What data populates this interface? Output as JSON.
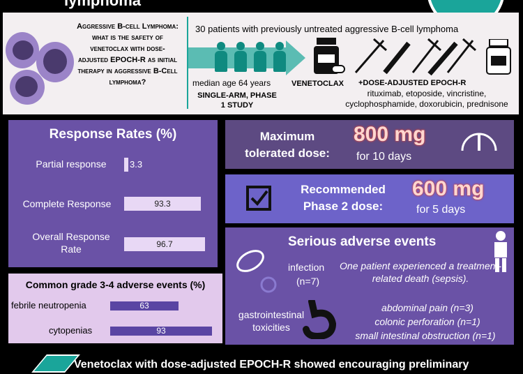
{
  "header": {
    "title_fragment": "lymphoma"
  },
  "intro": {
    "question": "Aggressive B-cell Lymphoma: what is the safety of venetoclax with dose-adjusted EPOCH-R as initial therapy in aggressive B-Cell lymphoma?",
    "study_population": "30 patients with previously untreated aggressive B-cell lymphoma",
    "median_age": "median age 64 years",
    "design": "SINGLE-ARM, PHASE 1 STUDY",
    "drug": "VENETOCLAX",
    "regimen": "+DOSE-ADJUSTED EPOCH-R",
    "regimen_drugs": "rituximab, etoposide, vincristine, cyclophosphamide, doxorubicin, prednisone"
  },
  "response": {
    "title": "Response Rates (%)",
    "items": [
      {
        "label": "Partial response",
        "value": "3.3"
      },
      {
        "label": "Complete Response",
        "value": "93.3"
      },
      {
        "label": "Overall Response Rate",
        "value": "96.7"
      }
    ]
  },
  "adverse": {
    "title": "Common grade 3-4 adverse events (%)",
    "items": [
      {
        "label": "febrile neutropenia",
        "value": "63"
      },
      {
        "label": "cytopenias",
        "value": "93"
      }
    ]
  },
  "mtd": {
    "label": "Maximum tolerated dose:",
    "dose": "800 mg",
    "duration": "for 10 days"
  },
  "rp2d": {
    "label": "Recommended Phase 2 dose:",
    "dose": "600 mg",
    "duration": "for 5 days"
  },
  "sae": {
    "title": "Serious adverse events",
    "infection_label": "infection",
    "infection_n": "(n=7)",
    "death_note": "One patient experienced a treatment-related death (sepsis).",
    "gi_label": "gastrointestinal toxicities",
    "gi_events": [
      "abdominal pain (n=3)",
      "colonic perforation (n=1)",
      "small intestinal obstruction (n=1)"
    ]
  },
  "conclusion": "Venetoclax with dose-adjusted EPOCH-R showed encouraging preliminary",
  "colors": {
    "teal": "#1aa59a",
    "purple": "#6a52a6",
    "dark_purple": "#5d4a82",
    "blue_purple": "#6d63c9",
    "lavender": "#e2c9ec",
    "dose_pink": "#ffd7d0"
  }
}
